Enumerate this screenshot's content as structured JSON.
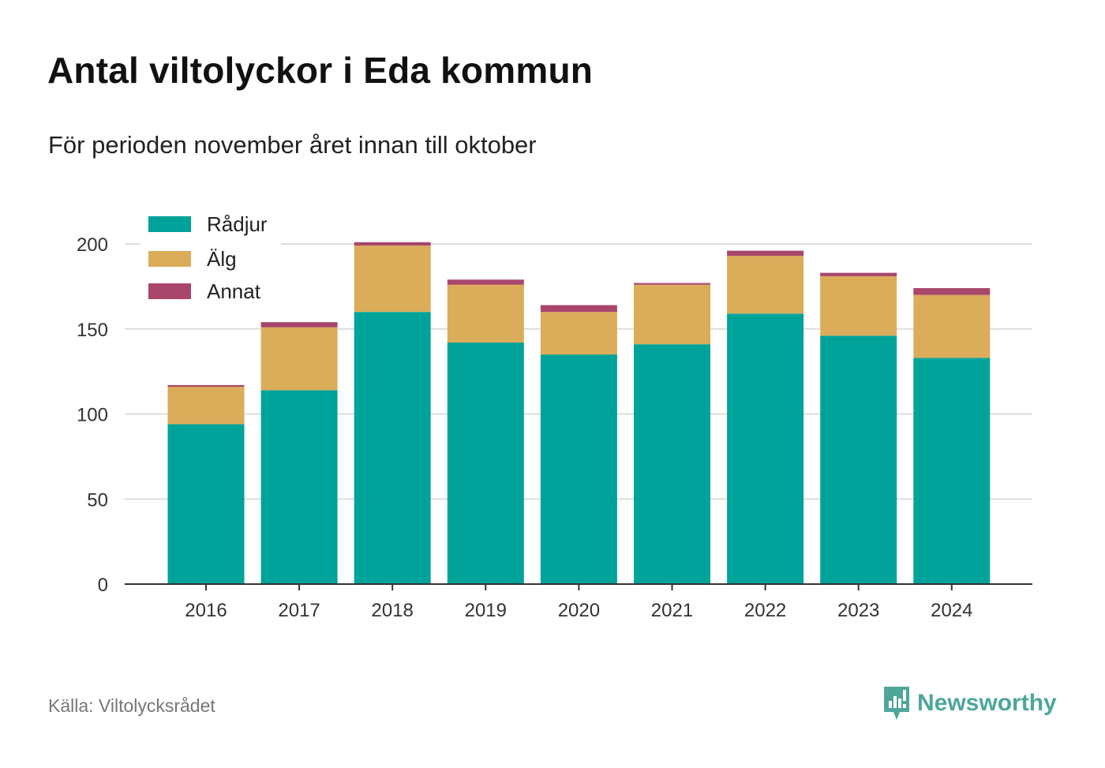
{
  "title": "Antal viltolyckor i Eda kommun",
  "subtitle": "För perioden november året innan till oktober",
  "source": "Källa: Viltolycksrådet",
  "brand": {
    "name": "Newsworthy",
    "icon": "newsworthy-logo-icon",
    "color": "#4ea69a"
  },
  "chart_data": {
    "type": "bar",
    "stacked": true,
    "categories": [
      "2016",
      "2017",
      "2018",
      "2019",
      "2020",
      "2021",
      "2022",
      "2023",
      "2024"
    ],
    "series": [
      {
        "name": "Rådjur",
        "color": "#00a39a",
        "values": [
          94,
          114,
          160,
          142,
          135,
          141,
          159,
          146,
          133
        ]
      },
      {
        "name": "Älg",
        "color": "#dbac5a",
        "values": [
          22,
          37,
          39,
          34,
          25,
          35,
          34,
          35,
          37
        ]
      },
      {
        "name": "Annat",
        "color": "#a8466c",
        "values": [
          1,
          3,
          2,
          3,
          4,
          1,
          3,
          2,
          4
        ]
      }
    ],
    "yticks": [
      0,
      50,
      100,
      150,
      200
    ],
    "ylim": [
      0,
      205
    ],
    "grid": true,
    "legend_position": "top-left",
    "xlabel": "",
    "ylabel": ""
  }
}
